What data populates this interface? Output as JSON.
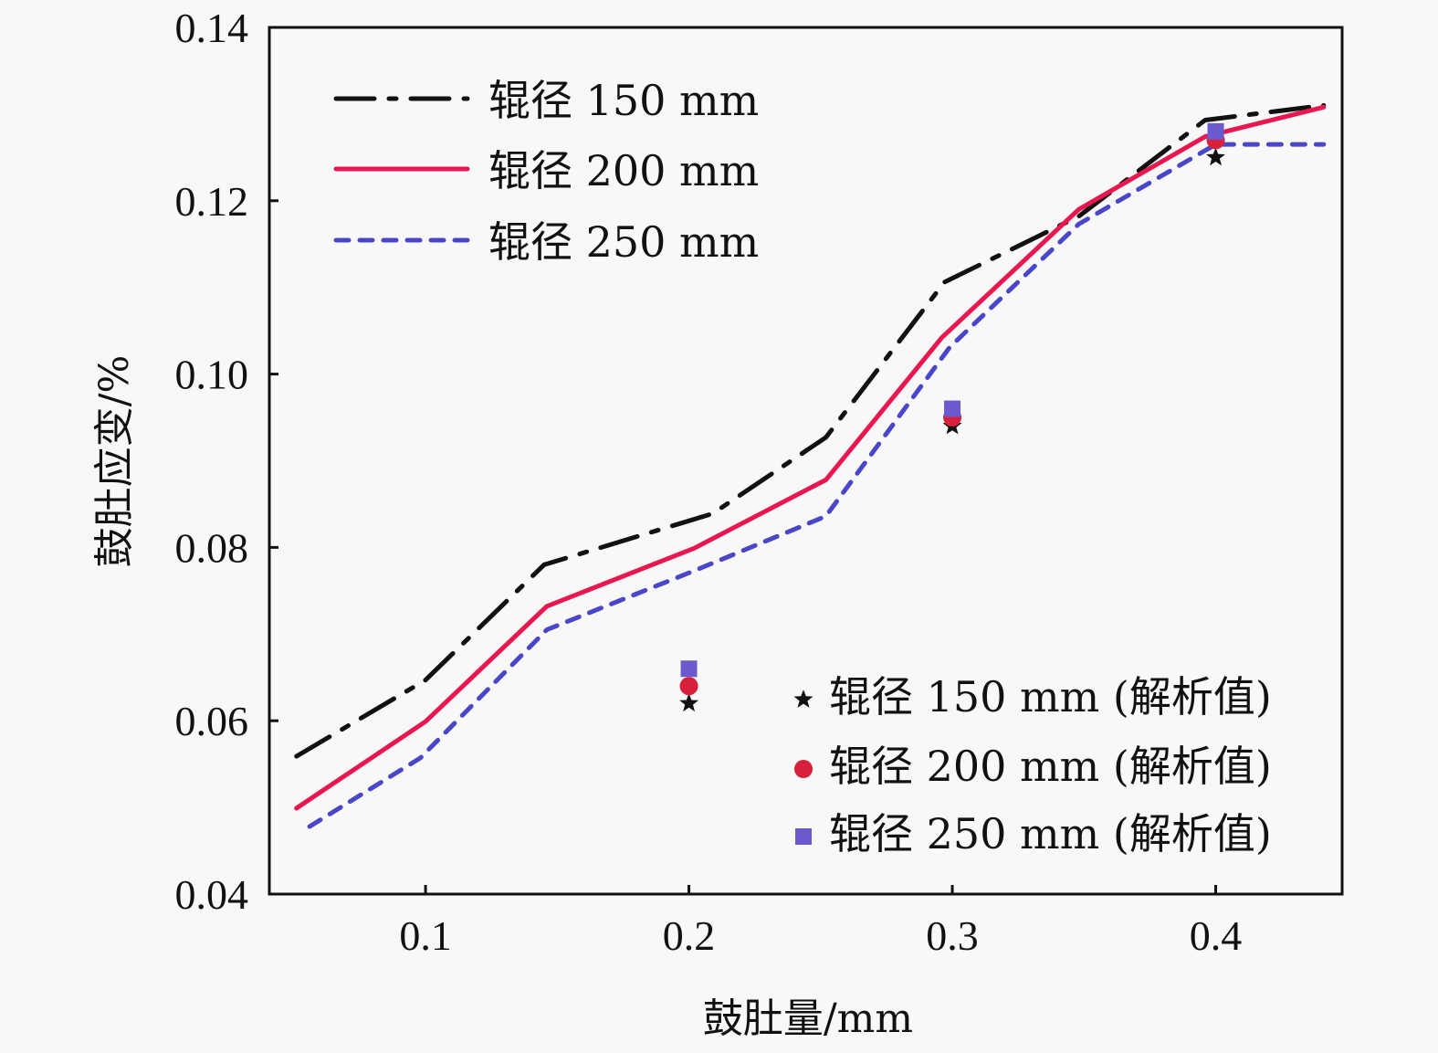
{
  "chart_data": {
    "type": "line",
    "title": "",
    "xlabel": "鼓肚量/mm",
    "ylabel": "鼓肚应变/%",
    "xlim": [
      0.0407,
      0.448
    ],
    "ylim": [
      0.04,
      0.14
    ],
    "xticks": [
      0.1,
      0.2,
      0.3,
      0.4
    ],
    "xtick_labels": [
      "0.1",
      "0.2",
      "0.3",
      "0.4"
    ],
    "yticks": [
      0.04,
      0.06,
      0.08,
      0.1,
      0.12,
      0.14
    ],
    "ytick_labels": [
      "0.04",
      "0.06",
      "0.08",
      "0.10",
      "0.12",
      "0.14"
    ],
    "grid": false,
    "series": [
      {
        "name": "辊径 150 mm",
        "style": "dashdot",
        "color": "#111111",
        "x": [
          0.051,
          0.1,
          0.145,
          0.209,
          0.252,
          0.297,
          0.348,
          0.396,
          0.441
        ],
        "y": [
          0.0559,
          0.0647,
          0.078,
          0.0839,
          0.0927,
          0.1106,
          0.1182,
          0.1293,
          0.131
        ]
      },
      {
        "name": "辊径 200 mm",
        "style": "solid",
        "color": "#e8174f",
        "x": [
          0.051,
          0.1,
          0.146,
          0.202,
          0.252,
          0.296,
          0.348,
          0.396,
          0.441
        ],
        "y": [
          0.0499,
          0.0599,
          0.0732,
          0.0799,
          0.0878,
          0.1042,
          0.119,
          0.1274,
          0.1308
        ]
      },
      {
        "name": "辊径 250 mm",
        "style": "dashed",
        "color": "#4a46c8",
        "x": [
          0.056,
          0.098,
          0.146,
          0.202,
          0.252,
          0.299,
          0.348,
          0.4,
          0.441
        ],
        "y": [
          0.0478,
          0.0557,
          0.0705,
          0.0773,
          0.0836,
          0.1031,
          0.1173,
          0.1265,
          0.1265
        ]
      }
    ],
    "scatter_series": [
      {
        "name": "辊径 150 mm (解析值)",
        "marker": "star",
        "color": "#111111",
        "x": [
          0.2,
          0.3,
          0.4
        ],
        "y": [
          0.062,
          0.094,
          0.125
        ]
      },
      {
        "name": "辊径 200 mm (解析值)",
        "marker": "circle",
        "color": "#d9203a",
        "x": [
          0.2,
          0.3,
          0.4
        ],
        "y": [
          0.064,
          0.095,
          0.127
        ]
      },
      {
        "name": "辊径 250 mm (解析值)",
        "marker": "square",
        "color": "#6a5acd",
        "x": [
          0.2,
          0.3,
          0.4
        ],
        "y": [
          0.066,
          0.096,
          0.128
        ]
      }
    ],
    "legends": [
      {
        "placement": "top-left",
        "entries": [
          "辊径 150 mm",
          "辊径 200 mm",
          "辊径 250 mm"
        ]
      },
      {
        "placement": "bottom-right",
        "entries": [
          "辊径 150 mm (解析值)",
          "辊径 200 mm (解析值)",
          "辊径 250 mm (解析值)"
        ]
      }
    ]
  }
}
